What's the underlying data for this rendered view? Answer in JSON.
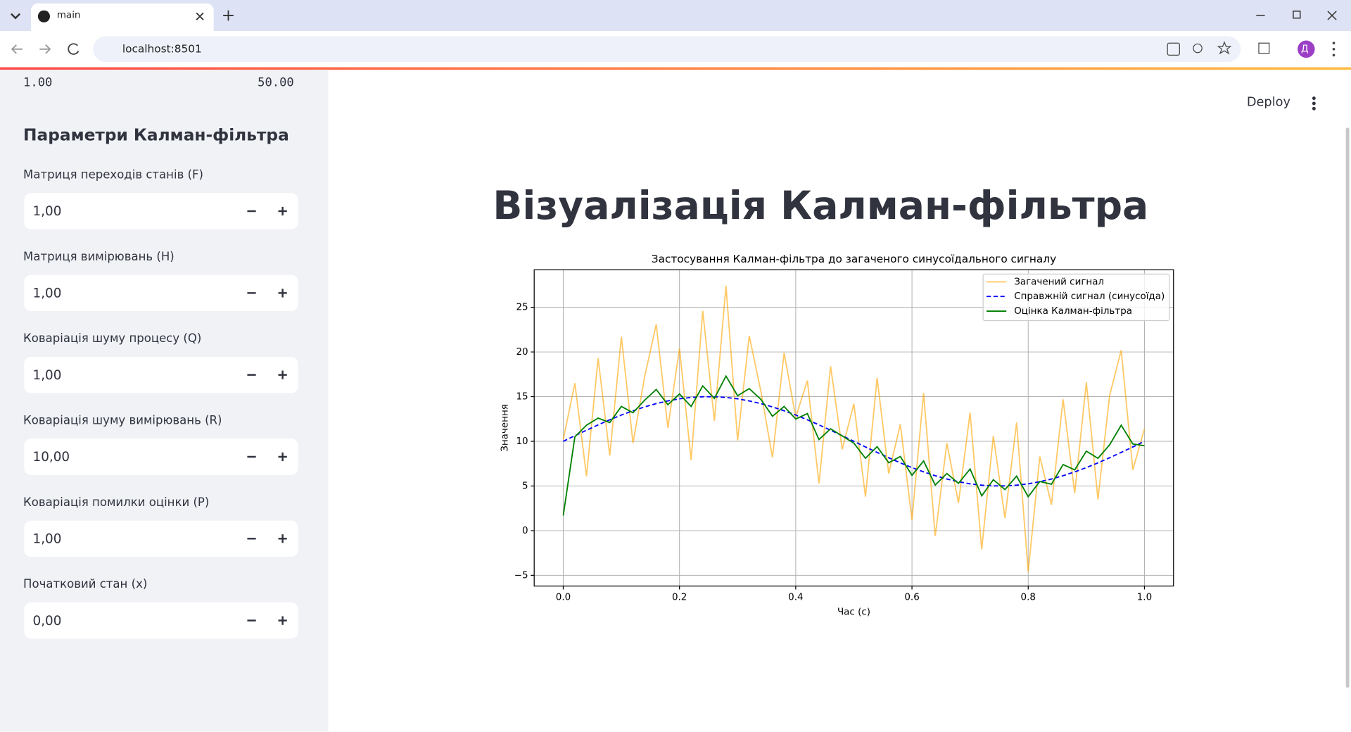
{
  "browser": {
    "tab_title": "main",
    "url": "localhost:8501",
    "profile_initial": "Д"
  },
  "sidebar": {
    "slider_min": "1.00",
    "slider_max": "50.00",
    "heading": "Параметри Калман-фільтра",
    "inputs": [
      {
        "label": "Матриця переходів станів (F)",
        "value": "1,00"
      },
      {
        "label": "Матриця вимірювань (H)",
        "value": "1,00"
      },
      {
        "label": "Коваріація шуму процесу (Q)",
        "value": "1,00"
      },
      {
        "label": "Коваріація шуму вимірювань (R)",
        "value": "10,00"
      },
      {
        "label": "Коваріація помилки оцінки (P)",
        "value": "1,00"
      },
      {
        "label": "Початковий стан (x)",
        "value": "0,00"
      }
    ]
  },
  "header": {
    "deploy": "Deploy"
  },
  "main": {
    "title": "Візуалізація Калман-фільтра"
  },
  "chart_data": {
    "type": "line",
    "title": "Застосування Калман-фільтра до загаченого синусоїдального сигналу",
    "x_label": "Час (с)",
    "y_label": "Значення",
    "x": [
      0,
      0.02,
      0.04,
      0.06,
      0.08,
      0.1,
      0.12,
      0.14,
      0.16,
      0.18,
      0.2,
      0.22,
      0.24,
      0.26,
      0.28,
      0.3,
      0.32,
      0.34,
      0.36,
      0.38,
      0.4,
      0.42,
      0.44,
      0.46,
      0.48,
      0.5,
      0.52,
      0.54,
      0.56,
      0.58,
      0.6,
      0.62,
      0.64,
      0.66,
      0.68,
      0.7,
      0.72,
      0.74,
      0.76,
      0.78,
      0.8,
      0.82,
      0.84,
      0.86,
      0.88,
      0.9,
      0.92,
      0.94,
      0.96,
      0.98,
      1
    ],
    "series": [
      {
        "name": "Загачений сигнал",
        "color": "#ffa500",
        "alpha": 0.6,
        "linestyle": "solid",
        "values": [
          10.2,
          16.5,
          6.1,
          19.3,
          8.4,
          21.7,
          9.8,
          17.2,
          23.1,
          11.5,
          20.4,
          7.9,
          24.6,
          12.3,
          27.4,
          10.1,
          21.8,
          15.6,
          8.2,
          19.9,
          12.7,
          16.8,
          5.3,
          18.4,
          9.1,
          14.2,
          3.8,
          17.1,
          6.4,
          11.9,
          1.2,
          15.4,
          -0.6,
          9.8,
          3.1,
          13.2,
          -2.1,
          10.6,
          1.4,
          12.1,
          -4.6,
          8.3,
          2.9,
          14.7,
          4.2,
          16.6,
          3.5,
          15.1,
          20.2,
          6.8,
          11.4
        ]
      },
      {
        "name": "Справжній сигнал (синусоїда)",
        "color": "#0000ff",
        "alpha": 1,
        "linestyle": "dashed",
        "values": [
          10,
          10.63,
          11.24,
          11.84,
          12.41,
          12.94,
          13.42,
          13.85,
          14.22,
          14.52,
          14.76,
          14.91,
          14.99,
          14.99,
          14.91,
          14.76,
          14.52,
          14.22,
          13.85,
          13.42,
          12.94,
          12.41,
          11.84,
          11.24,
          10.63,
          10,
          9.37,
          8.76,
          8.16,
          7.59,
          7.06,
          6.58,
          6.15,
          5.78,
          5.48,
          5.24,
          5.09,
          5.01,
          5.01,
          5.09,
          5.24,
          5.48,
          5.78,
          6.15,
          6.58,
          7.06,
          7.59,
          8.16,
          8.76,
          9.37,
          10
        ]
      },
      {
        "name": "Оцінка Калман-фільтра",
        "color": "#008000",
        "alpha": 1,
        "linestyle": "solid",
        "values": [
          1.7,
          10.5,
          11.8,
          12.6,
          12.1,
          13.9,
          13.2,
          14.6,
          15.8,
          14.1,
          15.3,
          13.9,
          16.2,
          14.8,
          17.3,
          15.1,
          15.9,
          14.7,
          12.8,
          13.9,
          12.5,
          13.1,
          10.2,
          11.4,
          10.6,
          9.8,
          8.1,
          9.4,
          7.6,
          8.3,
          6.2,
          7.8,
          5.1,
          6.4,
          5.3,
          6.9,
          3.9,
          5.7,
          4.6,
          6.1,
          3.8,
          5.5,
          5.2,
          7.4,
          6.8,
          8.9,
          8.1,
          9.6,
          11.8,
          9.7,
          9.5
        ]
      }
    ],
    "xlim": [
      -0.05,
      1.05
    ],
    "xticks": [
      {
        "value": 0,
        "label": "0.0"
      },
      0.2,
      0.4,
      0.6,
      0.8,
      {
        "value": 1,
        "label": "1.0"
      }
    ],
    "ylim": [
      -6.2,
      29.2
    ],
    "yticks": [
      {
        "value": -5,
        "label": "−5"
      },
      0,
      5,
      10,
      15,
      20,
      25
    ],
    "grid": true,
    "legend_position": "upper right"
  }
}
